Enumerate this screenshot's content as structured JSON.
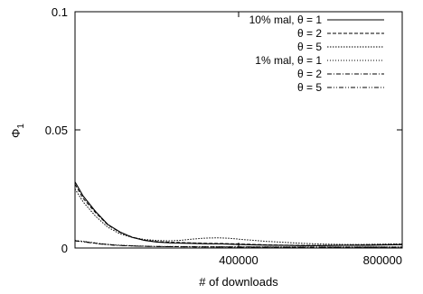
{
  "chart_data": {
    "type": "line",
    "title": "",
    "xlabel": "# of downloads",
    "ylabel": "Φ",
    "ylabel_sub": "1",
    "xlim": [
      0,
      800000
    ],
    "ylim": [
      0,
      0.1
    ],
    "xticks": [
      400000,
      800000
    ],
    "xtick_labels": [
      "400000",
      "800000"
    ],
    "yticks": [
      0,
      0.05,
      0.1
    ],
    "ytick_labels": [
      "0",
      "0.05",
      "0.1"
    ],
    "grid": false,
    "legend_position": "top-right",
    "series": [
      {
        "name": "10% mal, θ = 1",
        "dash": "solid",
        "x": [
          0,
          20000,
          50000,
          80000,
          110000,
          140000,
          170000,
          200000,
          240000,
          280000,
          320000,
          360000,
          400000,
          440000,
          480000,
          520000,
          560000,
          600000,
          640000,
          680000,
          720000,
          760000,
          800000
        ],
        "y": [
          0.028,
          0.022,
          0.0155,
          0.01,
          0.0068,
          0.0045,
          0.0032,
          0.0025,
          0.0021,
          0.002,
          0.0018,
          0.0017,
          0.0015,
          0.0013,
          0.0012,
          0.0011,
          0.001,
          0.001,
          0.0011,
          0.0012,
          0.0012,
          0.0013,
          0.0014
        ]
      },
      {
        "name": "θ = 2",
        "dash": "dashed",
        "x": [
          0,
          20000,
          50000,
          80000,
          110000,
          140000,
          170000,
          200000,
          240000,
          280000,
          320000,
          360000,
          400000,
          440000,
          480000,
          520000,
          560000,
          600000,
          640000,
          680000,
          720000,
          760000,
          800000
        ],
        "y": [
          0.027,
          0.021,
          0.015,
          0.0098,
          0.0066,
          0.0046,
          0.0033,
          0.0027,
          0.0024,
          0.0022,
          0.002,
          0.0019,
          0.0017,
          0.0015,
          0.0013,
          0.0012,
          0.0011,
          0.0011,
          0.0012,
          0.0013,
          0.0014,
          0.0015,
          0.0016
        ]
      },
      {
        "name": "θ = 5",
        "dash": "dotted",
        "x": [
          0,
          20000,
          50000,
          80000,
          110000,
          140000,
          170000,
          200000,
          230000,
          260000,
          290000,
          320000,
          350000,
          380000,
          410000,
          440000,
          470000,
          500000,
          540000,
          580000,
          620000,
          660000,
          700000,
          740000,
          780000,
          800000
        ],
        "y": [
          0.025,
          0.0195,
          0.0135,
          0.0088,
          0.006,
          0.0045,
          0.0036,
          0.0032,
          0.003,
          0.0033,
          0.0038,
          0.0042,
          0.0043,
          0.0041,
          0.0036,
          0.0032,
          0.0028,
          0.0025,
          0.0021,
          0.0018,
          0.0016,
          0.0015,
          0.0015,
          0.0016,
          0.0017,
          0.0017
        ]
      },
      {
        "name": "1% mal, θ = 1",
        "dash": "fine-dotted",
        "x": [
          0,
          30000,
          60000,
          100000,
          150000,
          200000,
          300000,
          400000,
          500000,
          600000,
          700000,
          800000
        ],
        "y": [
          0.0032,
          0.0026,
          0.0019,
          0.0013,
          0.0009,
          0.0007,
          0.0006,
          0.0005,
          0.0005,
          0.0005,
          0.0005,
          0.0005
        ]
      },
      {
        "name": "θ = 2",
        "dash": "dash-dot",
        "x": [
          0,
          30000,
          60000,
          100000,
          150000,
          200000,
          300000,
          400000,
          500000,
          600000,
          700000,
          800000
        ],
        "y": [
          0.0031,
          0.0025,
          0.0018,
          0.0012,
          0.0008,
          0.0006,
          0.0005,
          0.0005,
          0.0004,
          0.0004,
          0.0004,
          0.0004
        ]
      },
      {
        "name": "θ = 5",
        "dash": "dash-dot-dot",
        "x": [
          0,
          30000,
          60000,
          100000,
          150000,
          200000,
          300000,
          400000,
          500000,
          600000,
          700000,
          800000
        ],
        "y": [
          0.003,
          0.0024,
          0.0017,
          0.0011,
          0.0008,
          0.0006,
          0.0005,
          0.0004,
          0.0004,
          0.0004,
          0.0004,
          0.0004
        ]
      }
    ]
  }
}
